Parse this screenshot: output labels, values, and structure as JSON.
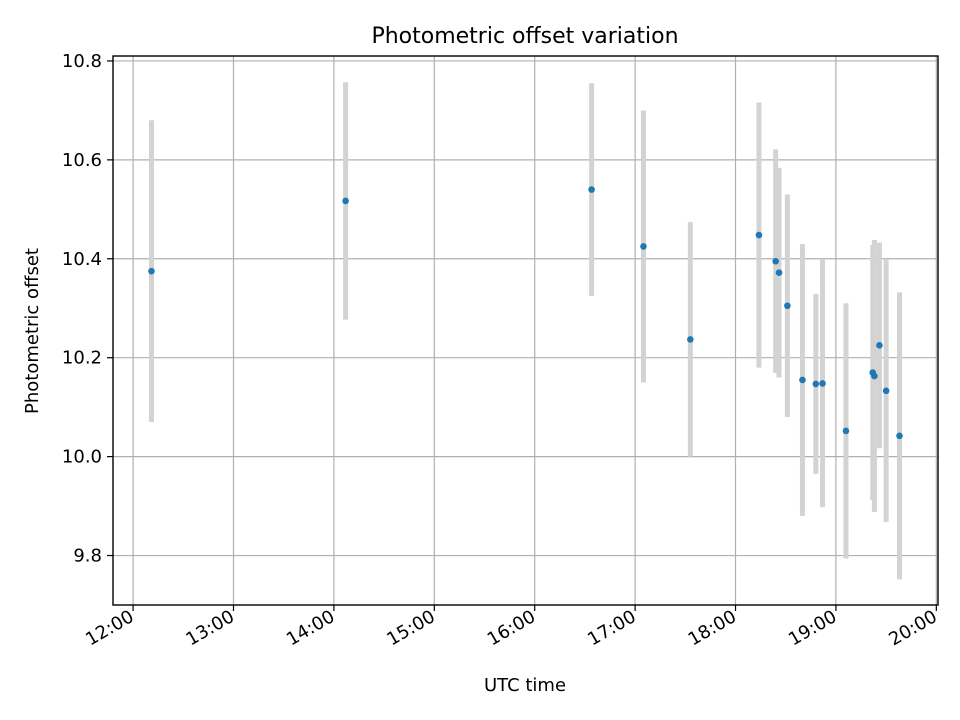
{
  "chart_data": {
    "type": "scatter",
    "title": "Photometric offset variation",
    "xlabel": "UTC time",
    "ylabel": "Photometric offset",
    "xlim": [
      "11:48",
      "20:01"
    ],
    "ylim": [
      9.7,
      10.81
    ],
    "grid": true,
    "colors": {
      "point": "#1f77b4",
      "errorbar": "#d3d3d3"
    },
    "x_ticks": [
      "12:00",
      "13:00",
      "14:00",
      "15:00",
      "16:00",
      "17:00",
      "18:00",
      "19:00",
      "20:00"
    ],
    "y_ticks": [
      "9.8",
      "10.0",
      "10.2",
      "10.4",
      "10.6",
      "10.8"
    ],
    "points": [
      {
        "x": "12:11",
        "y": 10.375,
        "err": 0.305
      },
      {
        "x": "14:07",
        "y": 10.517,
        "err": 0.24
      },
      {
        "x": "16:34",
        "y": 10.54,
        "err": 0.215
      },
      {
        "x": "17:05",
        "y": 10.425,
        "err": 0.275
      },
      {
        "x": "17:33",
        "y": 10.237,
        "err": 0.237
      },
      {
        "x": "18:14",
        "y": 10.448,
        "err": 0.268
      },
      {
        "x": "18:24",
        "y": 10.395,
        "err": 0.226
      },
      {
        "x": "18:26",
        "y": 10.372,
        "err": 0.212
      },
      {
        "x": "18:31",
        "y": 10.305,
        "err": 0.225
      },
      {
        "x": "18:40",
        "y": 10.155,
        "err": 0.275
      },
      {
        "x": "18:48",
        "y": 10.147,
        "err": 0.182
      },
      {
        "x": "18:52",
        "y": 10.148,
        "err": 0.25
      },
      {
        "x": "19:06",
        "y": 10.052,
        "err": 0.258
      },
      {
        "x": "19:22",
        "y": 10.17,
        "err": 0.258
      },
      {
        "x": "19:23",
        "y": 10.163,
        "err": 0.275
      },
      {
        "x": "19:26",
        "y": 10.225,
        "err": 0.208
      },
      {
        "x": "19:30",
        "y": 10.133,
        "err": 0.265
      },
      {
        "x": "19:38",
        "y": 10.042,
        "err": 0.29
      }
    ]
  }
}
